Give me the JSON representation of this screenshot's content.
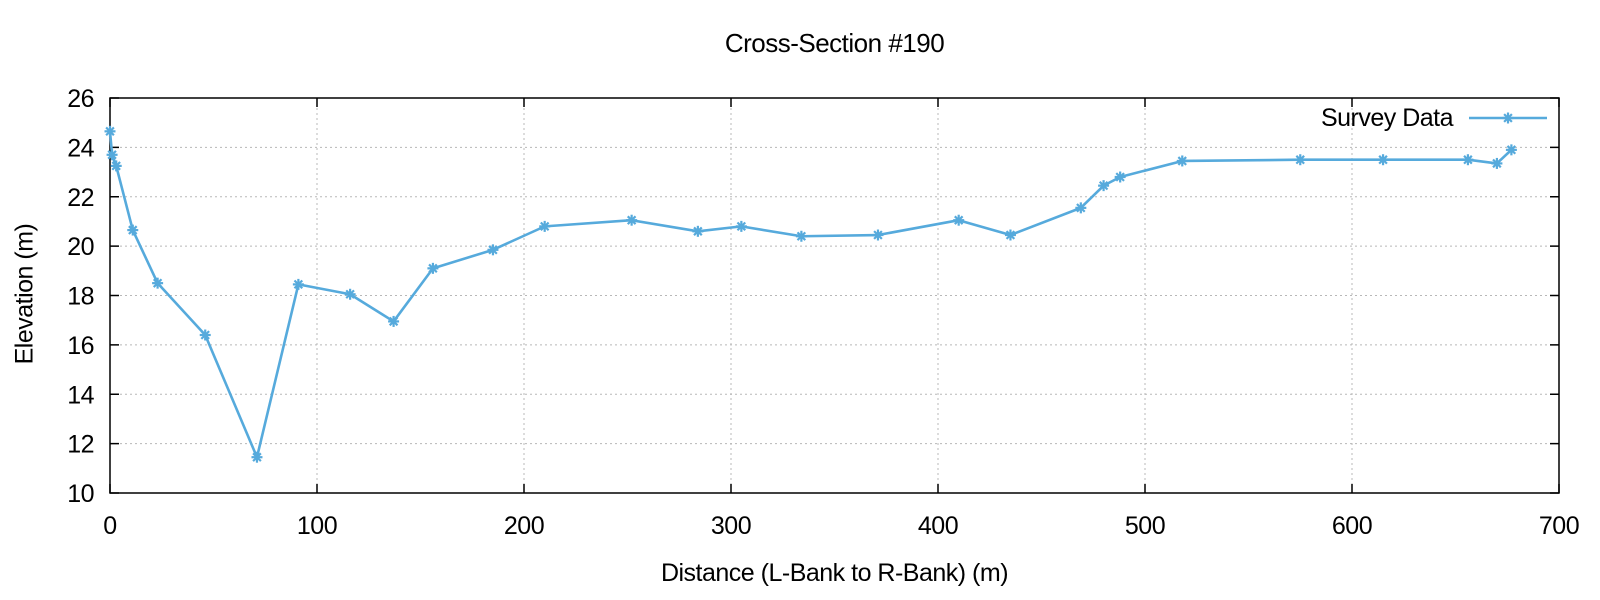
{
  "figure": {
    "background": "#ffffff"
  },
  "chart_data": {
    "type": "line",
    "title": "Cross-Section #190",
    "xlabel": "Distance (L-Bank to R-Bank) (m)",
    "ylabel": "Elevation (m)",
    "xlim": [
      0,
      700
    ],
    "ylim": [
      10,
      26
    ],
    "xticks": [
      0,
      100,
      200,
      300,
      400,
      500,
      600,
      700
    ],
    "yticks": [
      10,
      12,
      14,
      16,
      18,
      20,
      22,
      24,
      26
    ],
    "grid": true,
    "grid_style": "dashed",
    "legend_position": "top-right-inside",
    "series": [
      {
        "name": "Survey Data",
        "color": "#56aadc",
        "marker": "asterisk",
        "line_width": 2.6,
        "points": [
          [
            0,
            24.65
          ],
          [
            1,
            23.7
          ],
          [
            3,
            23.25
          ],
          [
            11,
            20.65
          ],
          [
            23,
            18.5
          ],
          [
            46,
            16.4
          ],
          [
            71,
            11.45
          ],
          [
            91,
            18.45
          ],
          [
            116,
            18.05
          ],
          [
            137,
            16.95
          ],
          [
            156,
            19.1
          ],
          [
            185,
            19.85
          ],
          [
            210,
            20.8
          ],
          [
            252,
            21.05
          ],
          [
            284,
            20.6
          ],
          [
            305,
            20.8
          ],
          [
            334,
            20.4
          ],
          [
            371,
            20.45
          ],
          [
            410,
            21.05
          ],
          [
            435,
            20.45
          ],
          [
            469,
            21.55
          ],
          [
            480,
            22.45
          ],
          [
            488,
            22.8
          ],
          [
            518,
            23.45
          ],
          [
            575,
            23.5
          ],
          [
            615,
            23.5
          ],
          [
            656,
            23.5
          ],
          [
            670,
            23.35
          ],
          [
            677,
            23.9
          ]
        ]
      }
    ],
    "colors": {
      "grid": "#b8b8b8",
      "axis": "#000000",
      "text": "#000000"
    }
  }
}
